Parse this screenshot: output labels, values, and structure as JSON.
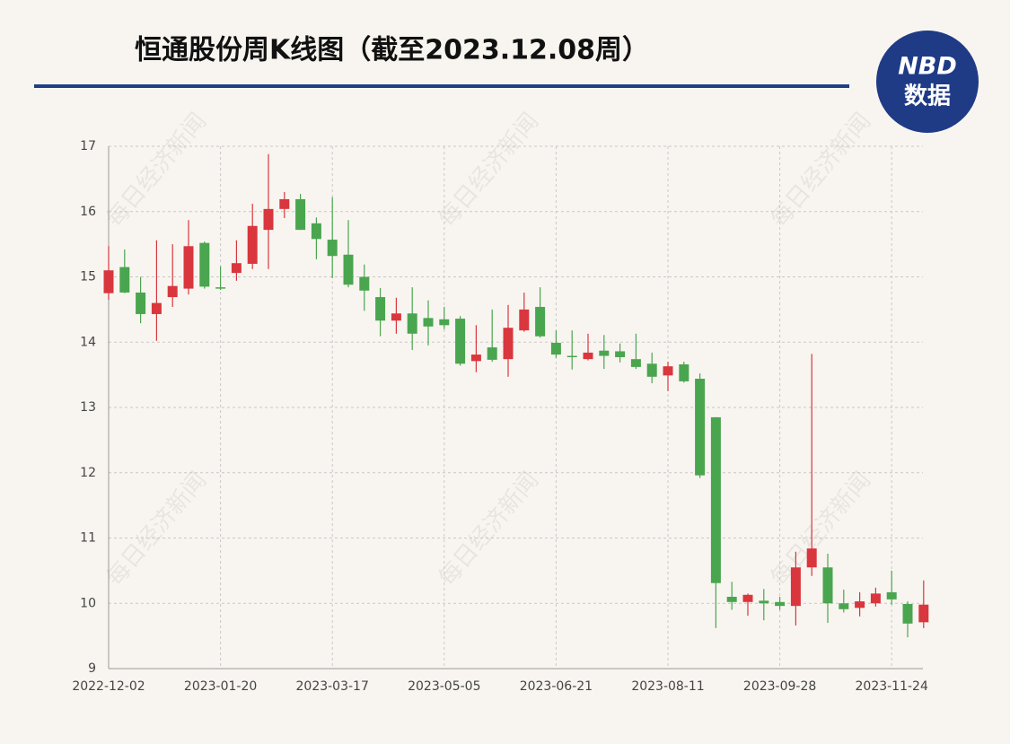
{
  "chart_data": {
    "type": "candlestick",
    "title": "恒通股份周K线图（截至2023.12.08周）",
    "categories": [
      "2022-12-02",
      null,
      null,
      null,
      null,
      null,
      null,
      "2023-01-20",
      null,
      null,
      null,
      null,
      null,
      null,
      "2023-03-17",
      null,
      null,
      null,
      null,
      null,
      null,
      "2023-05-05",
      null,
      null,
      null,
      null,
      null,
      null,
      "2023-06-21",
      null,
      null,
      null,
      null,
      null,
      null,
      "2023-08-11",
      null,
      null,
      null,
      null,
      null,
      null,
      "2023-09-28",
      null,
      null,
      null,
      null,
      null,
      null,
      "2023-11-24",
      null,
      null
    ],
    "open": [
      14.75,
      15.15,
      14.76,
      14.43,
      14.69,
      14.82,
      15.52,
      14.84,
      15.06,
      15.2,
      15.72,
      16.04,
      16.19,
      15.82,
      15.57,
      15.34,
      15.0,
      14.69,
      14.33,
      14.44,
      14.37,
      14.35,
      14.36,
      13.71,
      13.92,
      13.74,
      14.18,
      14.54,
      13.99,
      13.79,
      13.74,
      13.87,
      13.86,
      13.74,
      13.67,
      13.49,
      13.66,
      13.44,
      12.85,
      10.1,
      10.02,
      10.04,
      10.02,
      9.96,
      10.55,
      10.55,
      10.0,
      9.93,
      10.0,
      10.17,
      9.99,
      9.71
    ],
    "close": [
      15.1,
      14.76,
      14.43,
      14.6,
      14.86,
      15.47,
      14.85,
      14.82,
      15.21,
      15.78,
      16.04,
      16.19,
      15.72,
      15.58,
      15.32,
      14.88,
      14.79,
      14.33,
      14.44,
      14.13,
      14.24,
      14.26,
      13.67,
      13.81,
      13.73,
      14.22,
      14.5,
      14.09,
      13.81,
      13.78,
      13.84,
      13.79,
      13.77,
      13.62,
      13.47,
      13.63,
      13.4,
      11.96,
      10.31,
      10.02,
      10.13,
      10.0,
      9.96,
      10.55,
      10.84,
      10.0,
      9.91,
      10.03,
      10.15,
      10.06,
      9.69,
      9.98
    ],
    "high": [
      15.47,
      15.42,
      15.0,
      15.56,
      15.5,
      15.87,
      15.54,
      15.16,
      15.56,
      16.12,
      16.88,
      16.3,
      16.27,
      15.91,
      16.22,
      15.87,
      15.19,
      14.83,
      14.68,
      14.84,
      14.64,
      14.54,
      14.4,
      14.26,
      14.5,
      14.57,
      14.76,
      14.84,
      14.18,
      14.18,
      14.13,
      14.11,
      13.98,
      14.13,
      13.84,
      13.7,
      13.7,
      13.52,
      12.85,
      10.33,
      10.15,
      10.22,
      10.1,
      10.79,
      13.82,
      10.76,
      10.21,
      10.17,
      10.24,
      10.5,
      10.03,
      10.35
    ],
    "low": [
      14.65,
      14.75,
      14.29,
      14.02,
      14.54,
      14.73,
      14.82,
      14.8,
      14.94,
      15.12,
      15.12,
      15.9,
      15.72,
      15.27,
      14.98,
      14.84,
      14.48,
      14.09,
      14.13,
      13.88,
      13.95,
      14.2,
      13.64,
      13.54,
      13.7,
      13.47,
      14.16,
      14.07,
      13.76,
      13.58,
      13.72,
      13.59,
      13.69,
      13.59,
      13.37,
      13.25,
      13.38,
      11.92,
      9.62,
      9.9,
      9.81,
      9.74,
      9.9,
      9.66,
      10.42,
      9.7,
      9.86,
      9.8,
      9.95,
      9.98,
      9.48,
      9.62
    ],
    "up_color": "#d9363e",
    "down_color": "#4aa54f",
    "ylim": [
      9,
      17
    ],
    "yticks": [
      9,
      10,
      11,
      12,
      13,
      14,
      15,
      16,
      17
    ],
    "grid": true
  },
  "logo": {
    "brand": "NBD",
    "caption": "数据"
  },
  "watermark": "每日经济新闻"
}
